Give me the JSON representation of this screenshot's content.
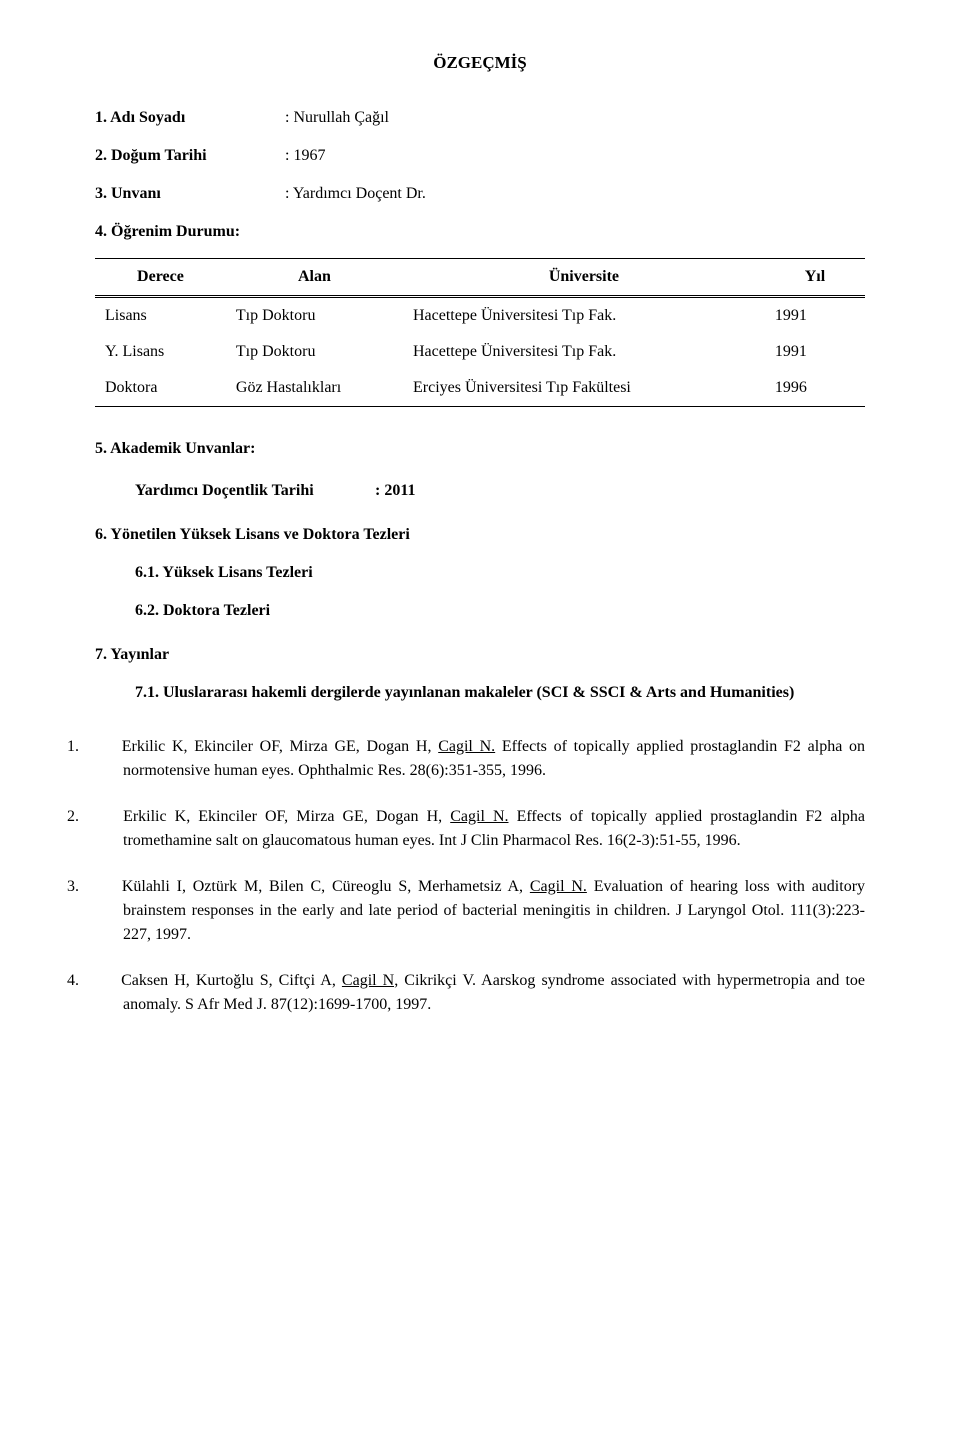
{
  "title": "ÖZGEÇMİŞ",
  "personal": {
    "row1_label": "1.   Adı Soyadı",
    "row1_value": ": Nurullah Çağıl",
    "row2_label": "2.   Doğum Tarihi",
    "row2_value": ": 1967",
    "row3_label": "3.   Unvanı",
    "row3_value": ": Yardımcı Doçent Dr.",
    "row4_label": "4.   Öğrenim Durumu:"
  },
  "edu_table": {
    "headers": {
      "c1": "Derece",
      "c2": "Alan",
      "c3": "Üniversite",
      "c4": "Yıl"
    },
    "rows": [
      {
        "c1": "Lisans",
        "c2": "Tıp Doktoru",
        "c3": "Hacettepe Üniversitesi Tıp Fak.",
        "c4": "1991"
      },
      {
        "c1": "Y. Lisans",
        "c2": "Tıp Doktoru",
        "c3": "Hacettepe Üniversitesi Tıp Fak.",
        "c4": "1991"
      },
      {
        "c1": "Doktora",
        "c2": "Göz Hastalıkları",
        "c3": "Erciyes Üniversitesi Tıp Fakültesi",
        "c4": "1996"
      }
    ]
  },
  "s5_label": "5.    Akademik Unvanlar:",
  "s5_sub_label": "Yardımcı Doçentlik Tarihi",
  "s5_sub_value": ": 2011",
  "s6_label": "6.    Yönetilen Yüksek Lisans ve Doktora Tezleri",
  "s6_1": "6.1. Yüksek Lisans Tezleri",
  "s6_2": "6.2. Doktora Tezleri",
  "s7_label": "7.    Yayınlar",
  "s7_1": "7.1. Uluslararası hakemli dergilerde yayınlanan makaleler (SCI & SSCI & Arts and Humanities)",
  "refs": [
    {
      "num": "1.",
      "pre": "Erkilic K, Ekinciler OF, Mirza GE, Dogan H, ",
      "u": "Cagil N.",
      "post": " Effects of topically applied prostaglandin F2 alpha on normotensive human eyes. Ophthalmic Res. 28(6):351-355, 1996."
    },
    {
      "num": "2.",
      "pre": "Erkilic K, Ekinciler OF, Mirza GE, Dogan H, ",
      "u": "Cagil N.",
      "post": " Effects of topically applied prostaglandin F2 alpha tromethamine salt on glaucomatous human eyes. Int J Clin Pharmacol Res. 16(2-3):51-55, 1996."
    },
    {
      "num": "3.",
      "pre": " Külahli I, Oztürk M, Bilen C, Cüreoglu S, Merhametsiz A, ",
      "u": "Cagil N.",
      "post": " Evaluation of hearing loss with auditory brainstem responses in the early and late period of bacterial meningitis in children. J Laryngol Otol. 111(3):223-227, 1997."
    },
    {
      "num": "4.",
      "pre": "Caksen H, Kurtoğlu S, Ciftçi A, ",
      "u": "Cagil N,",
      "post": " Cikrikçi V. Aarskog syndrome associated with hypermetropia and toe anomaly. S Afr Med J. 87(12):1699-1700, 1997."
    }
  ]
}
